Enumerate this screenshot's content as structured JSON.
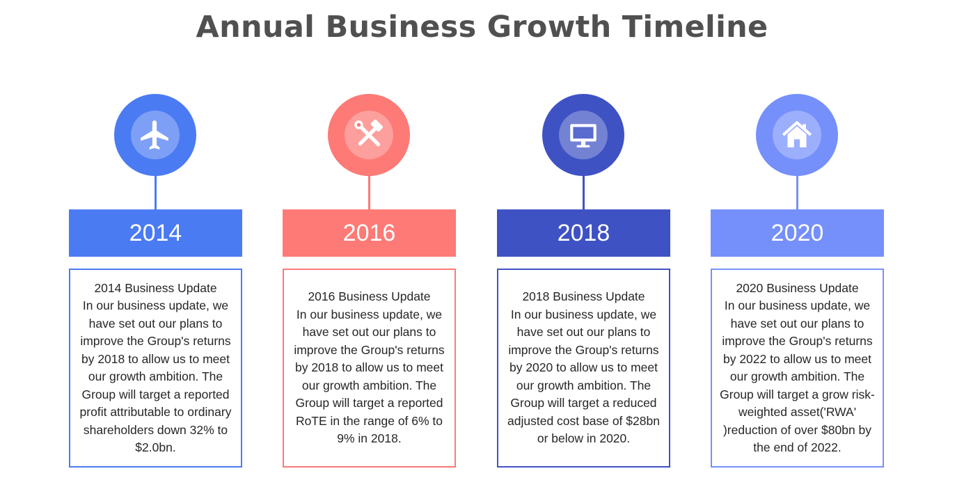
{
  "title": "Annual Business Growth Timeline",
  "colors": {
    "title": "#505050",
    "text": "#262626"
  },
  "milestones": [
    {
      "year": "2014",
      "icon": "airplane-icon",
      "color": "#4b7bf3",
      "heading": "2014 Business Update",
      "text": "2014 Business Update\nIn our business update, we\nhave set out our plans to\nimprove the Group's returns\nby 2018 to allow us to meet\nour growth ambition. The\nGroup will target a reported\nprofit attributable to ordinary\nshareholders down 32% to\n$2.0bn."
    },
    {
      "year": "2016",
      "icon": "tools-icon",
      "color": "#fd7a76",
      "heading": "2016 Business Update",
      "text": "2016 Business Update\nIn our business update, we\nhave set out our plans to\nimprove the Group's returns\nby 2018 to allow us to meet\nour growth ambition. The\nGroup will target a reported\nRoTE in the range of 6% to\n9% in 2018."
    },
    {
      "year": "2018",
      "icon": "monitor-icon",
      "color": "#3f52c4",
      "heading": "2018 Business Update",
      "text": "2018 Business Update\nIn our business update, we\nhave set out our plans to\nimprove the Group's returns\nby 2020 to allow us to meet\nour growth ambition. The\nGroup will target a reduced\nadjusted cost base of $28bn\nor below in 2020."
    },
    {
      "year": "2020",
      "icon": "home-icon",
      "color": "#7590fb",
      "heading": "2020 Business Update",
      "text": "2020 Business Update\nIn our business update, we\nhave set out our plans to\nimprove the Group's returns\nby 2022 to allow us to meet\nour growth ambition. The\nGroup will target a grow risk-\nweighted asset('RWA'\n)reduction of over $80bn by\nthe end of 2022."
    }
  ]
}
